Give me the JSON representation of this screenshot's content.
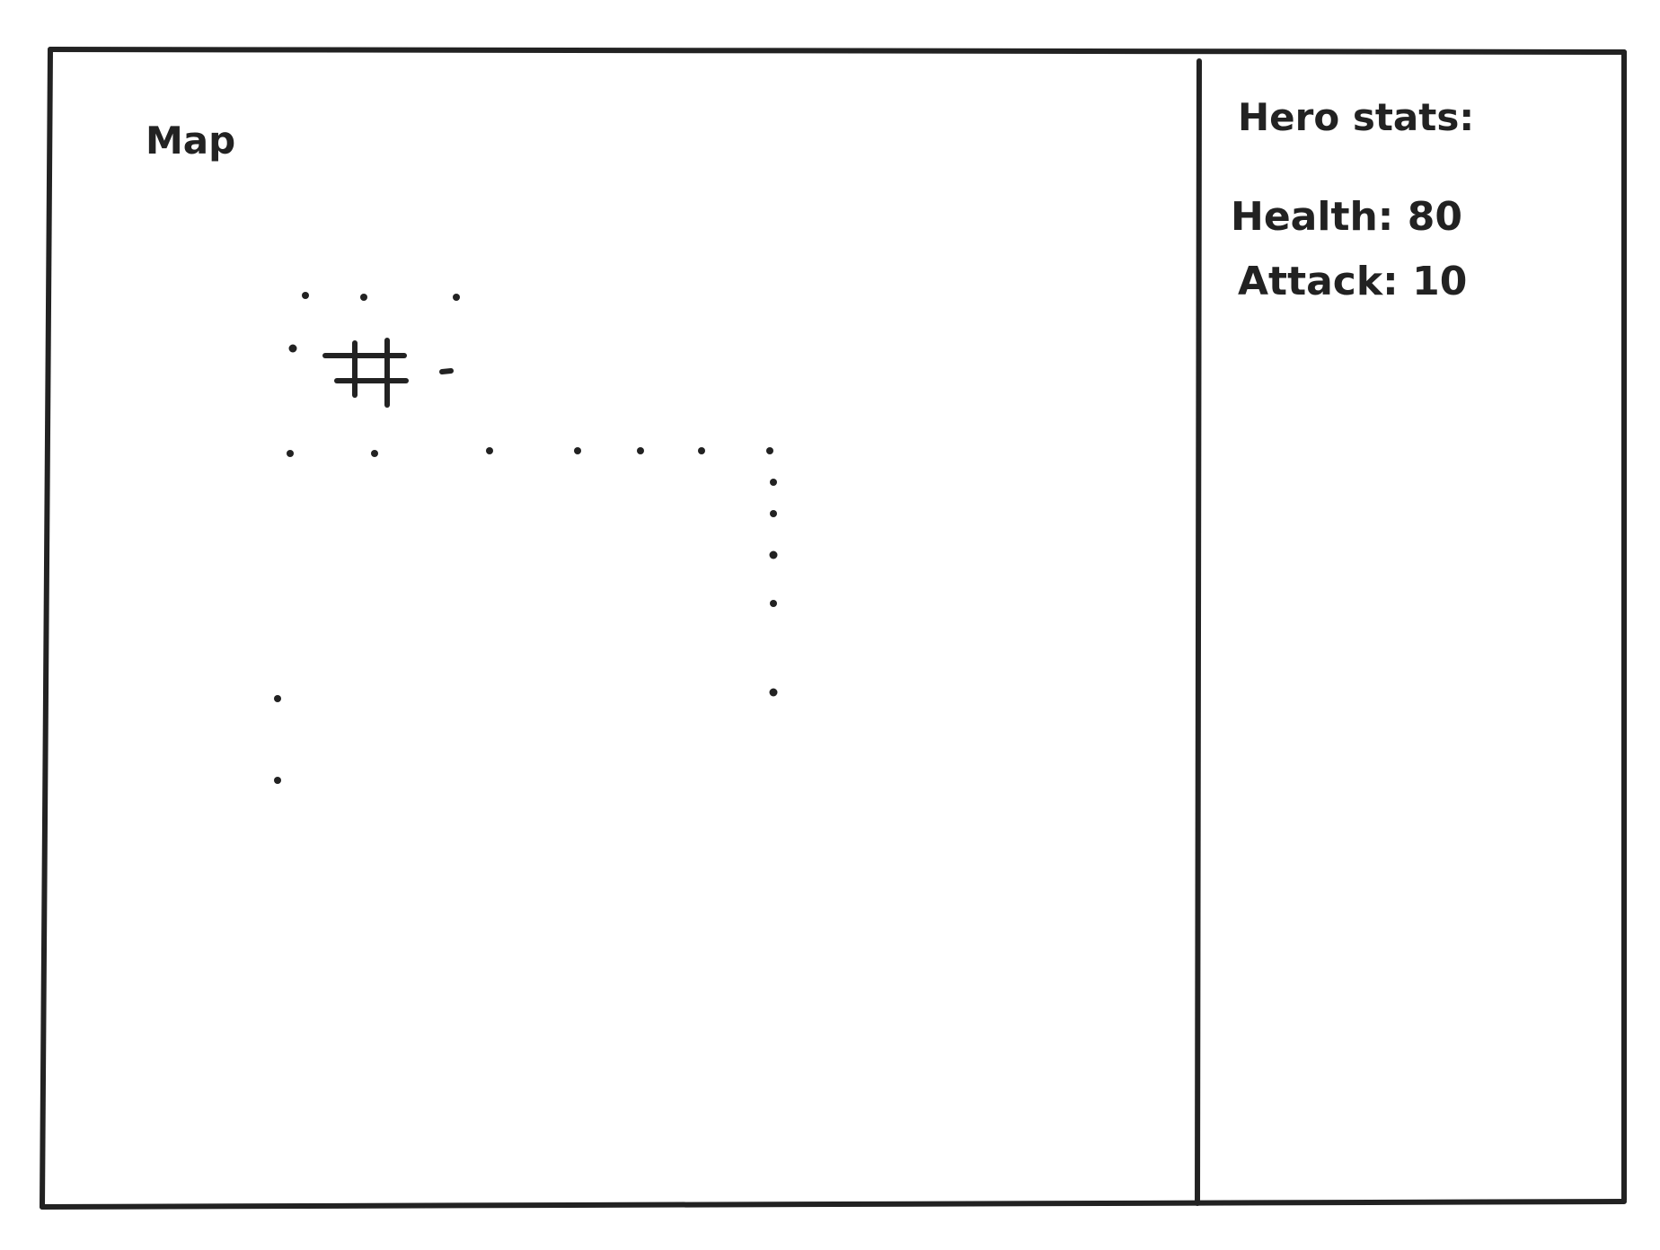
{
  "map_panel": {
    "title": "Map"
  },
  "stats_panel": {
    "title": "Hero stats:",
    "health": {
      "label": "Health:",
      "value": "80"
    },
    "attack": {
      "label": "Attack:",
      "value": "10"
    }
  },
  "map": {
    "player_icon": "hash-icon",
    "floor_icon": "dot-icon",
    "ink_color": "#222222",
    "background_color": "#ffffff"
  }
}
